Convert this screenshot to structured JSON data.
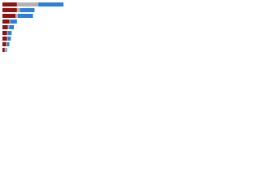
{
  "chart_data": {
    "type": "stacked-bar-horizontal",
    "categories": [
      null,
      null,
      null,
      null,
      null,
      null,
      null,
      null,
      null
    ],
    "series": [
      {
        "color": "#8e1414",
        "values": [
          19,
          19,
          17,
          9,
          7,
          6,
          6,
          5,
          3
        ]
      },
      {
        "color": "#b3b3b3",
        "values": [
          28,
          4,
          3,
          1,
          2,
          1,
          1,
          1,
          2
        ]
      },
      {
        "color": "#2f7ed8",
        "values": [
          33,
          19,
          20,
          9,
          6,
          5,
          4,
          3,
          1
        ]
      }
    ],
    "xlim": [
      0,
      100
    ]
  }
}
